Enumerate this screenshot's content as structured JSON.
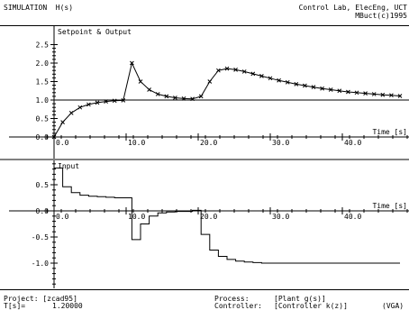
{
  "header": {
    "title": "SIMULATION  H(s)",
    "lab": "Control Lab, ElecEng, UCT",
    "copyright": "MBuct(c)1995"
  },
  "footer": {
    "project_label": "Project: [zcad95]",
    "ts_label": "T[s]=",
    "ts_value": "1.20000",
    "process_label": "Process:",
    "process_value": "[Plant g(s)]",
    "controller_label": "Controller:",
    "controller_value": "[Controller k(z)]",
    "mode": "(VGA)"
  },
  "chart_data": [
    {
      "type": "line",
      "title": "Setpoint & Output",
      "xlabel": "Time [s]",
      "ylabel": "",
      "xlim": [
        -1,
        50
      ],
      "ylim": [
        0,
        2.5
      ],
      "x_ticks": [
        "0.0",
        "10.0",
        "20.0",
        "30.0",
        "40.0"
      ],
      "y_ticks": [
        "0.0",
        "0.5",
        "1.0",
        "1.5",
        "2.0",
        "2.5"
      ],
      "series": [
        {
          "role": "setpoint",
          "color": "#000000",
          "points": [
            [
              0,
              0
            ],
            [
              0,
              1
            ],
            [
              50,
              1
            ]
          ]
        },
        {
          "role": "output",
          "color": "#000000",
          "marker": "x",
          "points": [
            [
              0,
              0
            ],
            [
              1.2,
              0.4
            ],
            [
              2.4,
              0.65
            ],
            [
              3.6,
              0.8
            ],
            [
              4.8,
              0.88
            ],
            [
              6,
              0.93
            ],
            [
              7.2,
              0.96
            ],
            [
              8.4,
              0.98
            ],
            [
              9.6,
              0.99
            ],
            [
              10.8,
              2.0
            ],
            [
              12,
              1.5
            ],
            [
              13.2,
              1.28
            ],
            [
              14.4,
              1.16
            ],
            [
              15.6,
              1.1
            ],
            [
              16.8,
              1.06
            ],
            [
              18,
              1.04
            ],
            [
              19.2,
              1.03
            ],
            [
              20.4,
              1.1
            ],
            [
              21.6,
              1.5
            ],
            [
              22.8,
              1.8
            ],
            [
              24,
              1.85
            ],
            [
              25.2,
              1.82
            ],
            [
              26.4,
              1.77
            ],
            [
              27.6,
              1.71
            ],
            [
              28.8,
              1.65
            ],
            [
              30,
              1.59
            ],
            [
              31.2,
              1.53
            ],
            [
              32.4,
              1.48
            ],
            [
              33.6,
              1.43
            ],
            [
              34.8,
              1.39
            ],
            [
              36,
              1.35
            ],
            [
              37.2,
              1.31
            ],
            [
              38.4,
              1.28
            ],
            [
              39.6,
              1.25
            ],
            [
              40.8,
              1.22
            ],
            [
              42,
              1.2
            ],
            [
              43.2,
              1.18
            ],
            [
              44.4,
              1.16
            ],
            [
              45.6,
              1.14
            ],
            [
              46.8,
              1.13
            ],
            [
              48,
              1.11
            ]
          ]
        }
      ]
    },
    {
      "type": "line",
      "title": "Input",
      "xlabel": "Time [s]",
      "ylabel": "",
      "xlim": [
        -1,
        50
      ],
      "ylim": [
        -1.5,
        1.0
      ],
      "x_ticks": [
        "0.0",
        "10.0",
        "20.0",
        "30.0",
        "40.0"
      ],
      "y_ticks": [
        "0.5",
        "0.0",
        "-0.5",
        "-1.0"
      ],
      "series": [
        {
          "role": "input",
          "color": "#000000",
          "step": true,
          "values": [
            0.82,
            0.46,
            0.35,
            0.3,
            0.28,
            0.27,
            0.26,
            0.25,
            0.25,
            -0.55,
            -0.25,
            -0.1,
            -0.04,
            -0.02,
            -0.01,
            -0.01,
            0.01,
            -0.45,
            -0.75,
            -0.87,
            -0.93,
            -0.96,
            -0.98,
            -0.99,
            -1.0,
            -1.0,
            -1.0,
            -1.0,
            -1.0,
            -1.0,
            -1.0,
            -1.0,
            -1.0,
            -1.0,
            -1.0,
            -1.0,
            -1.0,
            -1.0,
            -1.0,
            -1.0
          ],
          "step_s": 1.2
        }
      ]
    }
  ]
}
